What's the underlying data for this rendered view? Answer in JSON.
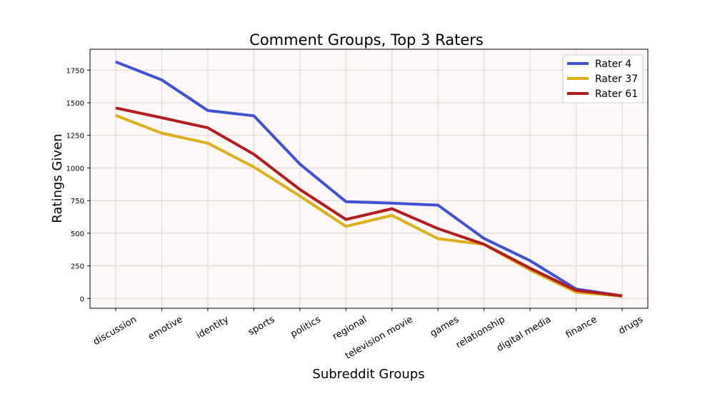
{
  "chart_data": {
    "type": "line",
    "title": "Comment Groups, Top 3 Raters",
    "xlabel": "Subreddit Groups",
    "ylabel": "Ratings Given",
    "categories": [
      "discussion",
      "emotive",
      "identity",
      "sports",
      "politics",
      "regional",
      "television movie",
      "games",
      "relationship",
      "digital media",
      "finance",
      "drugs"
    ],
    "yticks": [
      0,
      250,
      500,
      750,
      1000,
      1250,
      1500,
      1750
    ],
    "ylim": [
      -75,
      1910
    ],
    "grid": true,
    "legend_position": "top-right",
    "background_color": "#fdf8f7",
    "series": [
      {
        "name": "Rater 4",
        "color": "#3f51d4",
        "values": [
          1813,
          1675,
          1440,
          1400,
          1030,
          742,
          730,
          715,
          460,
          290,
          72,
          20
        ]
      },
      {
        "name": "Rater 37",
        "color": "#dbb01c",
        "values": [
          1403,
          1267,
          1190,
          1008,
          785,
          553,
          637,
          458,
          415,
          218,
          48,
          18
        ]
      },
      {
        "name": "Rater 61",
        "color": "#b31d1d",
        "values": [
          1460,
          1385,
          1308,
          1105,
          835,
          605,
          688,
          535,
          415,
          232,
          62,
          20
        ]
      }
    ]
  }
}
